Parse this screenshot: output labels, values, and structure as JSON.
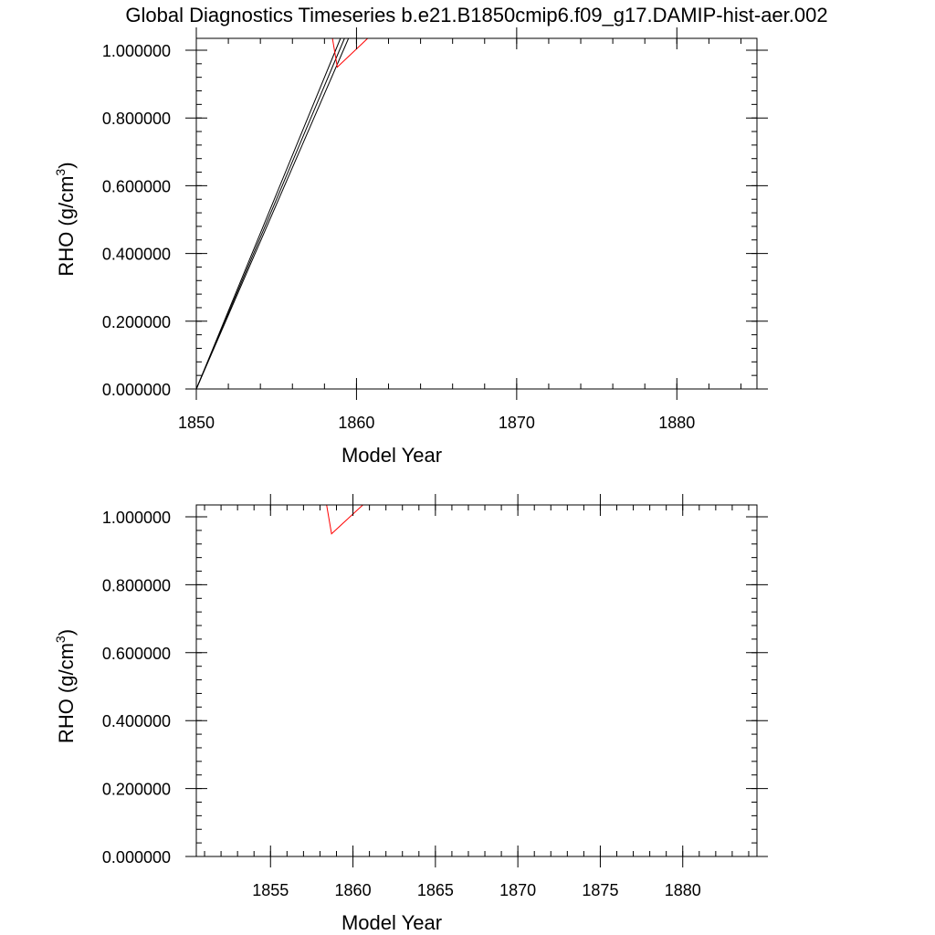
{
  "title": "Global Diagnostics Timeseries b.e21.B1850cmip6.f09_g17.DAMIP-hist-aer.002",
  "chart_data": [
    {
      "type": "line",
      "xlabel": "Model Year",
      "ylabel_main": "RHO (g/cm",
      "ylabel_sup": "3",
      "ylabel_close": ")",
      "xlim": [
        1850,
        1885
      ],
      "ylim": [
        0,
        1.035
      ],
      "x_ticks": [
        1850,
        1860,
        1870,
        1880
      ],
      "x_tick_labels": [
        "1850",
        "1860",
        "1870",
        "1880"
      ],
      "x_minor_step": 2,
      "y_ticks": [
        0,
        0.2,
        0.4,
        0.6,
        0.8,
        1.0
      ],
      "y_tick_labels": [
        "0.000000",
        "0.200000",
        "0.400000",
        "0.600000",
        "0.800000",
        "1.000000"
      ],
      "y_minor_step": 0.04,
      "series": [
        {
          "color": "#000000",
          "points": [
            [
              1850.0,
              0.0
            ],
            [
              1859.5,
              1.035
            ]
          ]
        },
        {
          "color": "#000000",
          "points": [
            [
              1850.0,
              0.0
            ],
            [
              1859.0,
              1.035
            ]
          ]
        },
        {
          "color": "#000000",
          "points": [
            [
              1850.0,
              0.0
            ],
            [
              1859.25,
              1.035
            ]
          ]
        },
        {
          "color": "#ff0000",
          "points": [
            [
              1858.5,
              1.035
            ],
            [
              1858.8,
              0.95
            ],
            [
              1860.7,
              1.035
            ]
          ]
        },
        {
          "color": "#000000",
          "points": [
            [
              1859.5,
              1.035
            ],
            [
              1885.0,
              1.035
            ]
          ]
        },
        {
          "color": "#ff0000",
          "points": [
            [
              1860.7,
              1.035
            ],
            [
              1885.0,
              1.035
            ]
          ]
        }
      ]
    },
    {
      "type": "line",
      "xlabel": "Model Year",
      "ylabel_main": "RHO (g/cm",
      "ylabel_sup": "3",
      "ylabel_close": ")",
      "xlim": [
        1850.5,
        1884.5
      ],
      "ylim": [
        0,
        1.035
      ],
      "x_ticks": [
        1855,
        1860,
        1865,
        1870,
        1875,
        1880
      ],
      "x_tick_labels": [
        "1855",
        "1860",
        "1865",
        "1870",
        "1875",
        "1880"
      ],
      "x_minor_step": 1,
      "y_ticks": [
        0,
        0.2,
        0.4,
        0.6,
        0.8,
        1.0
      ],
      "y_tick_labels": [
        "0.000000",
        "0.200000",
        "0.400000",
        "0.600000",
        "0.800000",
        "1.000000"
      ],
      "y_minor_step": 0.04,
      "series": [
        {
          "color": "#000000",
          "points": [
            [
              1850.5,
              1.035
            ],
            [
              1884.5,
              1.035
            ]
          ]
        },
        {
          "color": "#ff0000",
          "points": [
            [
              1850.5,
              1.035
            ],
            [
              1858.4,
              1.035
            ],
            [
              1858.7,
              0.95
            ],
            [
              1860.6,
              1.035
            ],
            [
              1884.5,
              1.035
            ]
          ]
        }
      ]
    }
  ]
}
